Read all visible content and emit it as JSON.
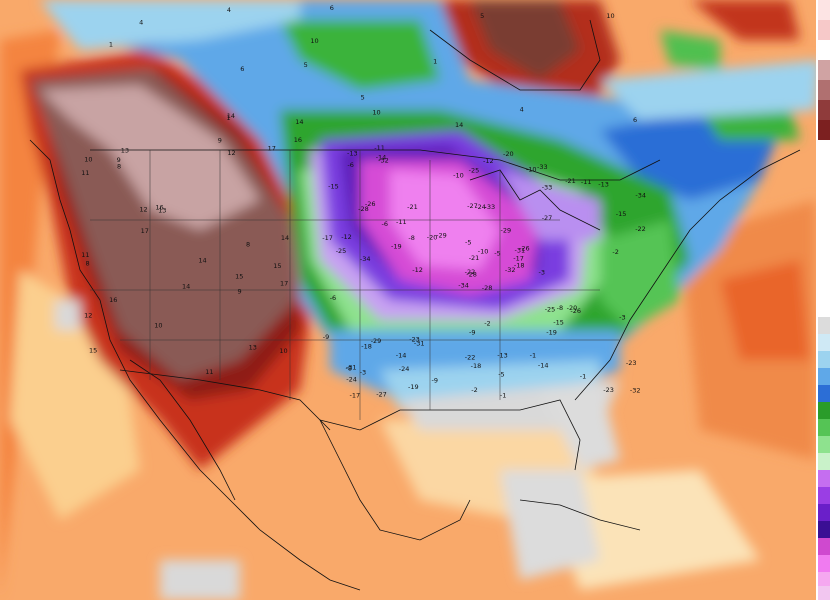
{
  "map": {
    "type": "temperature anomaly map",
    "region": "North America",
    "contour_labels_cold": [
      "-28",
      "-31",
      "-33",
      "-32",
      "-34",
      "-27",
      "-29",
      "-24",
      "-26",
      "-25",
      "-22",
      "-21",
      "-23",
      "-20",
      "-19",
      "-17",
      "-18",
      "-15",
      "-14",
      "-13",
      "-12",
      "-11",
      "-10",
      "-9",
      "-8",
      "-6",
      "-5",
      "-3",
      "-2",
      "-1"
    ],
    "contour_labels_warm_west": [
      "15",
      "13",
      "12",
      "11",
      "10",
      "14",
      "16",
      "17",
      "9",
      "8"
    ],
    "contour_labels_north": [
      "14",
      "4",
      "6",
      "10",
      "5",
      "1"
    ]
  },
  "legend": {
    "colors_top": [
      "#fde4e4",
      "#f7c9c9",
      "#ffffff",
      "#d0a3a3",
      "#b07070",
      "#8f3b3b",
      "#7c2020"
    ],
    "colors_mid": [
      "#ffffff",
      "#dcdcdc",
      "#cfe9f5",
      "#9cd3ef",
      "#5fa8e8",
      "#2c6ed6",
      "#2a9c2a",
      "#55c455",
      "#8ee28e",
      "#c9f2c9",
      "#c56ef0",
      "#9a3ee4",
      "#6a1fc9",
      "#3a0f94",
      "#cf49cf",
      "#f07bf0"
    ],
    "colors_bottom": [
      "#f5a8f0",
      "#f2c6f0"
    ]
  }
}
